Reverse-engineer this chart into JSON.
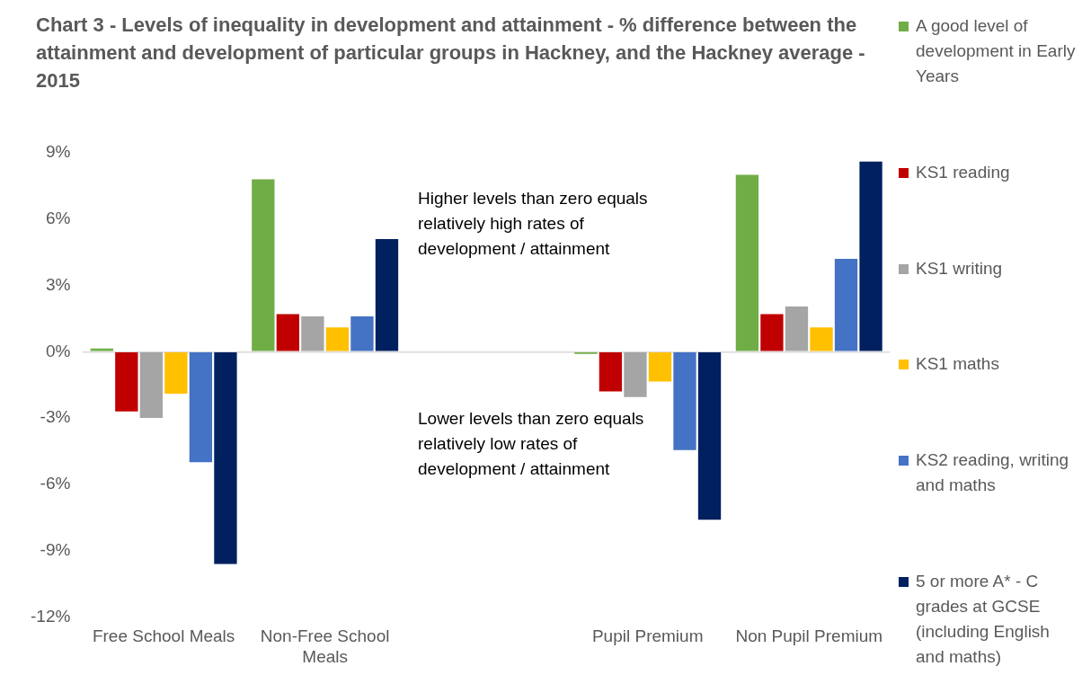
{
  "chart_data": {
    "type": "bar",
    "title": "Chart 3 - Levels of inequality in development and attainment - % difference between the attainment and development of particular groups in Hackney, and the Hackney average - 2015",
    "categories": [
      "Free School Meals",
      "Non-Free School Meals",
      null,
      "Pupil Premium",
      "Non Pupil Premium"
    ],
    "series": [
      {
        "name": "A good level of development in Early Years",
        "color": "#70ad47",
        "values": [
          0.15,
          7.8,
          null,
          -0.1,
          8.0
        ]
      },
      {
        "name": "KS1 reading",
        "color": "#c00000",
        "values": [
          -2.7,
          1.7,
          null,
          -1.8,
          1.7
        ]
      },
      {
        "name": "KS1 writing",
        "color": "#a5a5a5",
        "values": [
          -3.0,
          1.6,
          null,
          -2.05,
          2.05
        ]
      },
      {
        "name": "KS1 maths",
        "color": "#ffc000",
        "values": [
          -1.9,
          1.1,
          null,
          -1.35,
          1.1
        ]
      },
      {
        "name": "KS2 reading, writing and maths",
        "color": "#4472c4",
        "values": [
          -5.0,
          1.6,
          null,
          -4.45,
          4.2
        ]
      },
      {
        "name": "5 or more A* - C grades at GCSE (including English and maths)",
        "color": "#002060",
        "values": [
          -9.6,
          5.1,
          null,
          -7.6,
          8.6
        ]
      }
    ],
    "ylim": [
      -12,
      9
    ],
    "yticks": [
      {
        "value": -12,
        "label": "-12%"
      },
      {
        "value": -9,
        "label": "-9%"
      },
      {
        "value": -6,
        "label": "-6%"
      },
      {
        "value": -3,
        "label": "-3%"
      },
      {
        "value": 0,
        "label": "0%"
      },
      {
        "value": 3,
        "label": "3%"
      },
      {
        "value": 6,
        "label": "6%"
      },
      {
        "value": 9,
        "label": "9%"
      }
    ],
    "legend": "right",
    "annotations": [
      "Higher levels than zero equals relatively high rates of development / attainment",
      "Lower levels than zero equals relatively low rates of development / attainment"
    ]
  }
}
